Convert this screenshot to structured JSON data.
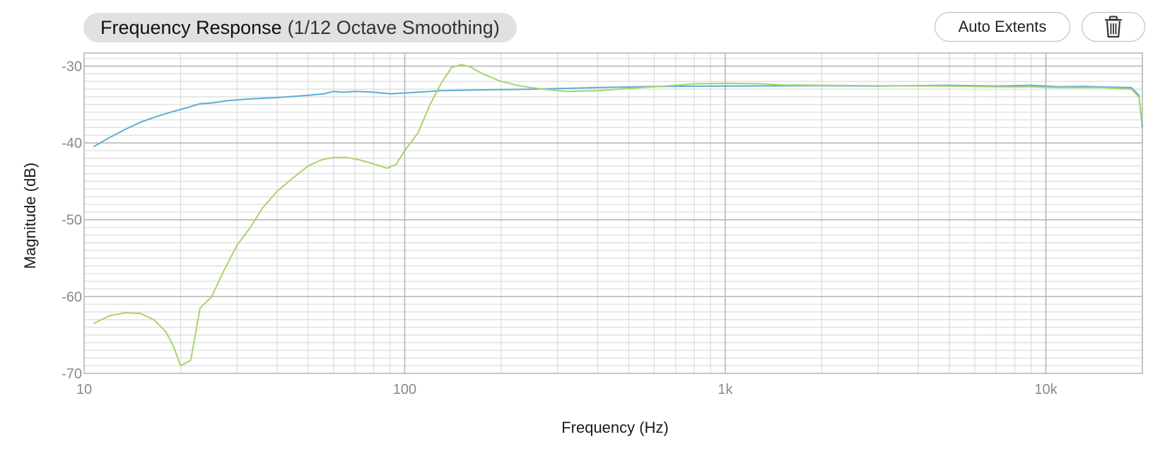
{
  "header": {
    "title_main": "Frequency Response",
    "title_sub": "(1/12 Octave Smoothing)",
    "auto_extents_label": "Auto Extents",
    "trash_icon": "trash-icon"
  },
  "colors": {
    "series_blue": "#5aaed8",
    "series_green": "#a9d36b",
    "grid_major": "#b3b3b3",
    "grid_minor": "#dedede",
    "title_bg": "#e1e1e1"
  },
  "chart_data": {
    "type": "line",
    "title": "Frequency Response (1/12 Octave Smoothing)",
    "xlabel": "Frequency (Hz)",
    "ylabel": "Magnitude (dB)",
    "xscale": "log",
    "xlim": [
      10,
      20000
    ],
    "ylim": [
      -70,
      -28.3
    ],
    "grid": true,
    "x_ticks": [
      {
        "value": 10,
        "label": "10"
      },
      {
        "value": 100,
        "label": "100"
      },
      {
        "value": 1000,
        "label": "1k"
      },
      {
        "value": 10000,
        "label": "10k"
      }
    ],
    "y_ticks": [
      {
        "value": -30,
        "label": "-30"
      },
      {
        "value": -40,
        "label": "-40"
      },
      {
        "value": -50,
        "label": "-50"
      },
      {
        "value": -60,
        "label": "-60"
      },
      {
        "value": -70,
        "label": "-70"
      }
    ],
    "series": [
      {
        "color": "#5aaed8",
        "points": [
          [
            10.7,
            -40.5
          ],
          [
            12,
            -39.3
          ],
          [
            13.5,
            -38.2
          ],
          [
            15,
            -37.3
          ],
          [
            17,
            -36.5
          ],
          [
            19,
            -35.9
          ],
          [
            21,
            -35.4
          ],
          [
            23,
            -34.9
          ],
          [
            25,
            -34.8
          ],
          [
            28,
            -34.5
          ],
          [
            32,
            -34.3
          ],
          [
            40,
            -34.1
          ],
          [
            50,
            -33.8
          ],
          [
            56,
            -33.6
          ],
          [
            60,
            -33.3
          ],
          [
            64,
            -33.4
          ],
          [
            70,
            -33.3
          ],
          [
            80,
            -33.4
          ],
          [
            90,
            -33.6
          ],
          [
            100,
            -33.5
          ],
          [
            110,
            -33.4
          ],
          [
            130,
            -33.2
          ],
          [
            170,
            -33.1
          ],
          [
            250,
            -33
          ],
          [
            400,
            -32.8
          ],
          [
            600,
            -32.65
          ],
          [
            1000,
            -32.6
          ],
          [
            2000,
            -32.55
          ],
          [
            3000,
            -32.6
          ],
          [
            5000,
            -32.5
          ],
          [
            7000,
            -32.6
          ],
          [
            9000,
            -32.5
          ],
          [
            11000,
            -32.7
          ],
          [
            13000,
            -32.65
          ],
          [
            16000,
            -32.75
          ],
          [
            18500,
            -32.8
          ],
          [
            19500,
            -33.8
          ],
          [
            20000,
            -38.0
          ]
        ]
      },
      {
        "color": "#a9d36b",
        "points": [
          [
            10.7,
            -63.5
          ],
          [
            12,
            -62.5
          ],
          [
            13.5,
            -62.1
          ],
          [
            15,
            -62.2
          ],
          [
            16.5,
            -63
          ],
          [
            18,
            -64.6
          ],
          [
            19,
            -66.5
          ],
          [
            20,
            -69
          ],
          [
            21.5,
            -68.3
          ],
          [
            23,
            -61.5
          ],
          [
            25,
            -60
          ],
          [
            27,
            -57
          ],
          [
            30,
            -53.3
          ],
          [
            33,
            -51
          ],
          [
            36,
            -48.5
          ],
          [
            40,
            -46.3
          ],
          [
            45,
            -44.5
          ],
          [
            50,
            -43
          ],
          [
            55,
            -42.2
          ],
          [
            60,
            -41.9
          ],
          [
            66,
            -41.9
          ],
          [
            72,
            -42.2
          ],
          [
            78,
            -42.6
          ],
          [
            84,
            -43
          ],
          [
            88,
            -43.3
          ],
          [
            94,
            -42.8
          ],
          [
            100,
            -41
          ],
          [
            110,
            -38.7
          ],
          [
            120,
            -35
          ],
          [
            130,
            -32.2
          ],
          [
            140,
            -30.2
          ],
          [
            150,
            -29.8
          ],
          [
            160,
            -30.1
          ],
          [
            175,
            -31
          ],
          [
            200,
            -32
          ],
          [
            230,
            -32.6
          ],
          [
            270,
            -33
          ],
          [
            320,
            -33.3
          ],
          [
            400,
            -33.2
          ],
          [
            500,
            -32.9
          ],
          [
            600,
            -32.7
          ],
          [
            700,
            -32.5
          ],
          [
            800,
            -32.3
          ],
          [
            1000,
            -32.25
          ],
          [
            1300,
            -32.3
          ],
          [
            1500,
            -32.45
          ],
          [
            2000,
            -32.5
          ],
          [
            3000,
            -32.55
          ],
          [
            5000,
            -32.6
          ],
          [
            7000,
            -32.7
          ],
          [
            9000,
            -32.7
          ],
          [
            11000,
            -32.8
          ],
          [
            15000,
            -32.8
          ],
          [
            18500,
            -33
          ],
          [
            19500,
            -34
          ],
          [
            20000,
            -37.5
          ]
        ]
      }
    ]
  }
}
